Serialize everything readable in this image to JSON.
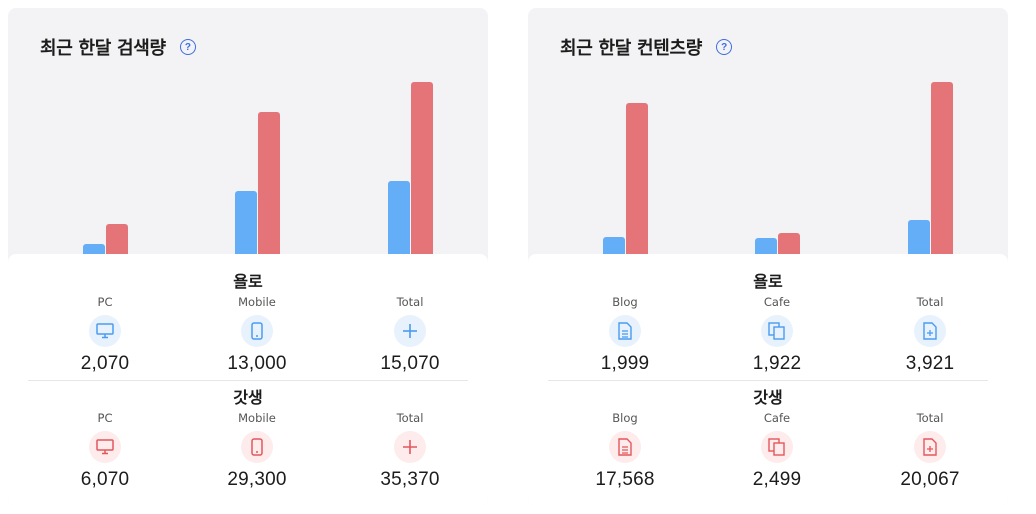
{
  "colors": {
    "blue": "#64aef7",
    "red": "#e57478",
    "accent": "#3a6ee6"
  },
  "search_panel": {
    "title": "최근 한달 검색량",
    "help_icon": "question-circle-icon",
    "chart_data": {
      "type": "bar",
      "categories": [
        "PC",
        "Mobile",
        "Total"
      ],
      "series": [
        {
          "name": "욜로",
          "color": "#64aef7",
          "values": [
            2070,
            13000,
            15070
          ]
        },
        {
          "name": "갓생",
          "color": "#e57478",
          "values": [
            6070,
            29300,
            35370
          ]
        }
      ],
      "ylim": [
        0,
        35370
      ]
    },
    "groups": [
      {
        "title": "욜로",
        "stats": [
          {
            "label": "PC",
            "value": "2,070",
            "icon": "monitor-icon"
          },
          {
            "label": "Mobile",
            "value": "13,000",
            "icon": "smartphone-icon"
          },
          {
            "label": "Total",
            "value": "15,070",
            "icon": "plus-icon"
          }
        ]
      },
      {
        "title": "갓생",
        "stats": [
          {
            "label": "PC",
            "value": "6,070",
            "icon": "monitor-icon"
          },
          {
            "label": "Mobile",
            "value": "29,300",
            "icon": "smartphone-icon"
          },
          {
            "label": "Total",
            "value": "35,370",
            "icon": "plus-icon"
          }
        ]
      }
    ]
  },
  "content_panel": {
    "title": "최근 한달 컨텐츠량",
    "help_icon": "question-circle-icon",
    "chart_data": {
      "type": "bar",
      "categories": [
        "Blog",
        "Cafe",
        "Total"
      ],
      "series": [
        {
          "name": "욜로",
          "color": "#64aef7",
          "values": [
            1999,
            1922,
            3921
          ]
        },
        {
          "name": "갓생",
          "color": "#e57478",
          "values": [
            17568,
            2499,
            20067
          ]
        }
      ],
      "ylim": [
        0,
        20067
      ]
    },
    "groups": [
      {
        "title": "욜로",
        "stats": [
          {
            "label": "Blog",
            "value": "1,999",
            "icon": "document-icon"
          },
          {
            "label": "Cafe",
            "value": "1,922",
            "icon": "copy-icon"
          },
          {
            "label": "Total",
            "value": "3,921",
            "icon": "document-plus-icon"
          }
        ]
      },
      {
        "title": "갓생",
        "stats": [
          {
            "label": "Blog",
            "value": "17,568",
            "icon": "document-icon"
          },
          {
            "label": "Cafe",
            "value": "2,499",
            "icon": "copy-icon"
          },
          {
            "label": "Total",
            "value": "20,067",
            "icon": "document-plus-icon"
          }
        ]
      }
    ]
  }
}
